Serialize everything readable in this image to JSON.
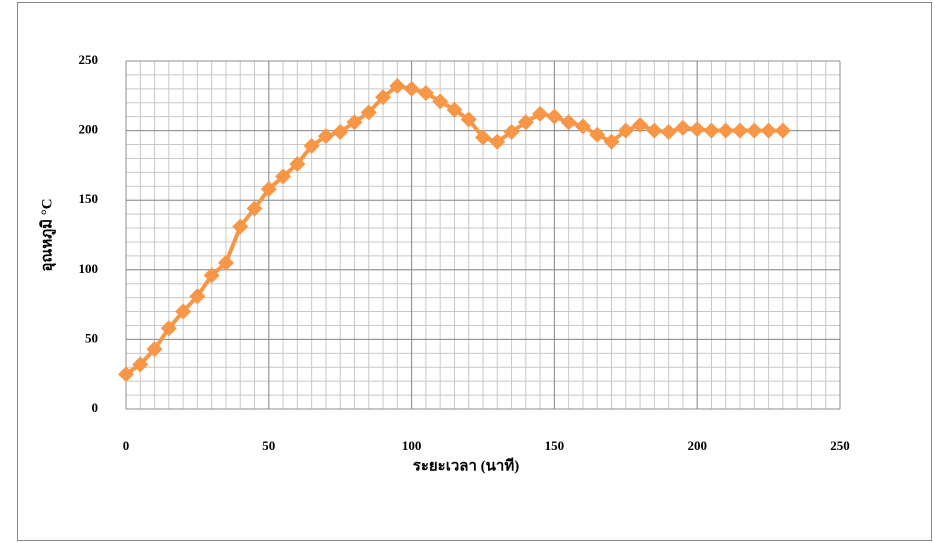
{
  "chart_data": {
    "type": "line",
    "x_label": "ระยะเวลา (นาที)",
    "y_label": "อุณหภูมิ °C",
    "x": [
      0,
      5,
      10,
      15,
      20,
      25,
      30,
      35,
      40,
      45,
      50,
      55,
      60,
      65,
      70,
      75,
      80,
      85,
      90,
      95,
      100,
      105,
      110,
      115,
      120,
      125,
      130,
      135,
      140,
      145,
      150,
      155,
      160,
      165,
      170,
      175,
      180,
      185,
      190,
      195,
      200,
      205,
      210,
      215,
      220,
      225,
      230
    ],
    "series": [
      {
        "color": "#f79646",
        "marker": "diamond",
        "values": [
          25,
          32,
          43,
          58,
          70,
          81,
          96,
          105,
          131,
          144,
          158,
          167,
          176,
          189,
          196,
          199,
          206,
          213,
          224,
          232,
          230,
          227,
          221,
          215,
          208,
          195,
          192,
          199,
          206,
          212,
          210,
          206,
          203,
          197,
          192,
          200,
          204,
          200,
          199,
          202,
          201,
          200,
          200,
          200,
          200,
          200,
          200
        ]
      }
    ],
    "xlim": [
      0,
      250
    ],
    "xticks": [
      0,
      50,
      100,
      150,
      200,
      250
    ],
    "ylim": [
      0,
      250
    ],
    "yticks": [
      0,
      50,
      100,
      150,
      200,
      250
    ],
    "grid": true,
    "minor_grid": {
      "x": 5,
      "y": 10
    }
  }
}
